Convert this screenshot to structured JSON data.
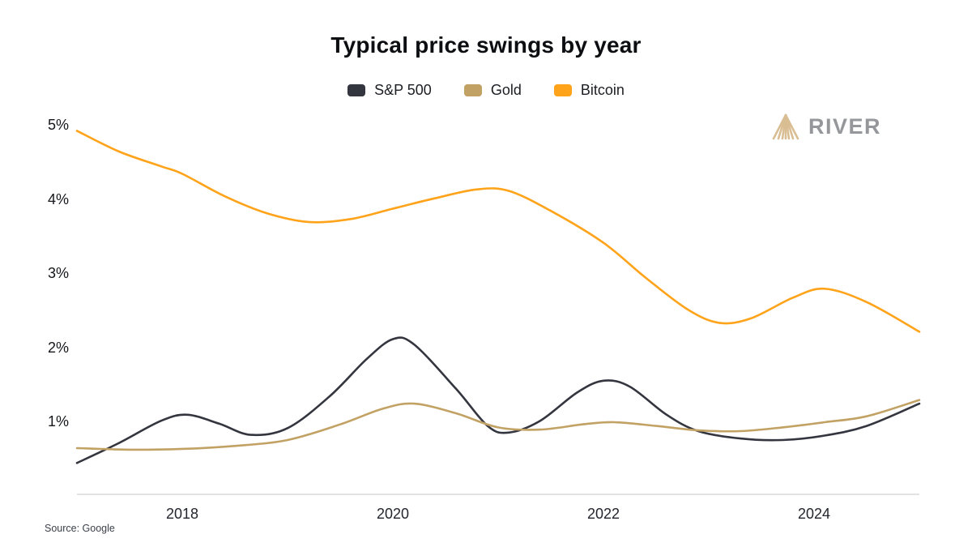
{
  "title": "Typical price swings by year",
  "source": "Source: Google",
  "logo": {
    "text": "RIVER",
    "icon_color": "#D9BD93",
    "text_color": "#96979B"
  },
  "chart_data": {
    "type": "line",
    "title": "Typical price swings by year",
    "xlabel": "",
    "ylabel": "",
    "x_range": [
      2017,
      2025
    ],
    "y_range": [
      0,
      5.2
    ],
    "grid": false,
    "legend_position": "top",
    "y_ticks": [
      {
        "value": 5,
        "label": "5%"
      },
      {
        "value": 4,
        "label": "4%"
      },
      {
        "value": 3,
        "label": "3%"
      },
      {
        "value": 2,
        "label": "2%"
      },
      {
        "value": 1,
        "label": "1%"
      }
    ],
    "x_ticks": [
      {
        "value": 2018,
        "label": "2018"
      },
      {
        "value": 2020,
        "label": "2020"
      },
      {
        "value": 2022,
        "label": "2022"
      },
      {
        "value": 2024,
        "label": "2024"
      }
    ],
    "series": [
      {
        "name": "S&P 500",
        "color": "#33353F",
        "points": [
          [
            2017.0,
            0.45
          ],
          [
            2017.4,
            0.72
          ],
          [
            2017.8,
            1.02
          ],
          [
            2018.05,
            1.1
          ],
          [
            2018.35,
            0.98
          ],
          [
            2018.65,
            0.83
          ],
          [
            2019.0,
            0.92
          ],
          [
            2019.4,
            1.35
          ],
          [
            2019.75,
            1.85
          ],
          [
            2020.0,
            2.12
          ],
          [
            2020.2,
            2.05
          ],
          [
            2020.6,
            1.45
          ],
          [
            2020.9,
            0.95
          ],
          [
            2021.1,
            0.86
          ],
          [
            2021.4,
            1.02
          ],
          [
            2021.75,
            1.4
          ],
          [
            2022.0,
            1.56
          ],
          [
            2022.25,
            1.48
          ],
          [
            2022.6,
            1.1
          ],
          [
            2022.9,
            0.88
          ],
          [
            2023.3,
            0.78
          ],
          [
            2023.7,
            0.76
          ],
          [
            2024.1,
            0.82
          ],
          [
            2024.5,
            0.95
          ],
          [
            2025.0,
            1.25
          ]
        ]
      },
      {
        "name": "Gold",
        "color": "#C2A264",
        "points": [
          [
            2017.0,
            0.65
          ],
          [
            2017.5,
            0.63
          ],
          [
            2018.0,
            0.64
          ],
          [
            2018.5,
            0.68
          ],
          [
            2019.0,
            0.76
          ],
          [
            2019.5,
            0.97
          ],
          [
            2019.9,
            1.18
          ],
          [
            2020.2,
            1.25
          ],
          [
            2020.6,
            1.12
          ],
          [
            2021.0,
            0.93
          ],
          [
            2021.4,
            0.9
          ],
          [
            2021.8,
            0.97
          ],
          [
            2022.1,
            1.0
          ],
          [
            2022.5,
            0.95
          ],
          [
            2022.9,
            0.89
          ],
          [
            2023.3,
            0.88
          ],
          [
            2023.7,
            0.93
          ],
          [
            2024.1,
            1.0
          ],
          [
            2024.5,
            1.08
          ],
          [
            2025.0,
            1.3
          ]
        ]
      },
      {
        "name": "Bitcoin",
        "color": "#FFA31A",
        "points": [
          [
            2017.0,
            4.93
          ],
          [
            2017.4,
            4.65
          ],
          [
            2017.8,
            4.45
          ],
          [
            2018.0,
            4.35
          ],
          [
            2018.4,
            4.05
          ],
          [
            2018.8,
            3.82
          ],
          [
            2019.2,
            3.7
          ],
          [
            2019.6,
            3.74
          ],
          [
            2020.0,
            3.88
          ],
          [
            2020.4,
            4.02
          ],
          [
            2020.8,
            4.14
          ],
          [
            2021.1,
            4.12
          ],
          [
            2021.5,
            3.85
          ],
          [
            2022.0,
            3.42
          ],
          [
            2022.4,
            2.95
          ],
          [
            2022.8,
            2.52
          ],
          [
            2023.1,
            2.34
          ],
          [
            2023.4,
            2.4
          ],
          [
            2023.8,
            2.68
          ],
          [
            2024.1,
            2.8
          ],
          [
            2024.5,
            2.62
          ],
          [
            2025.0,
            2.22
          ]
        ]
      }
    ]
  }
}
